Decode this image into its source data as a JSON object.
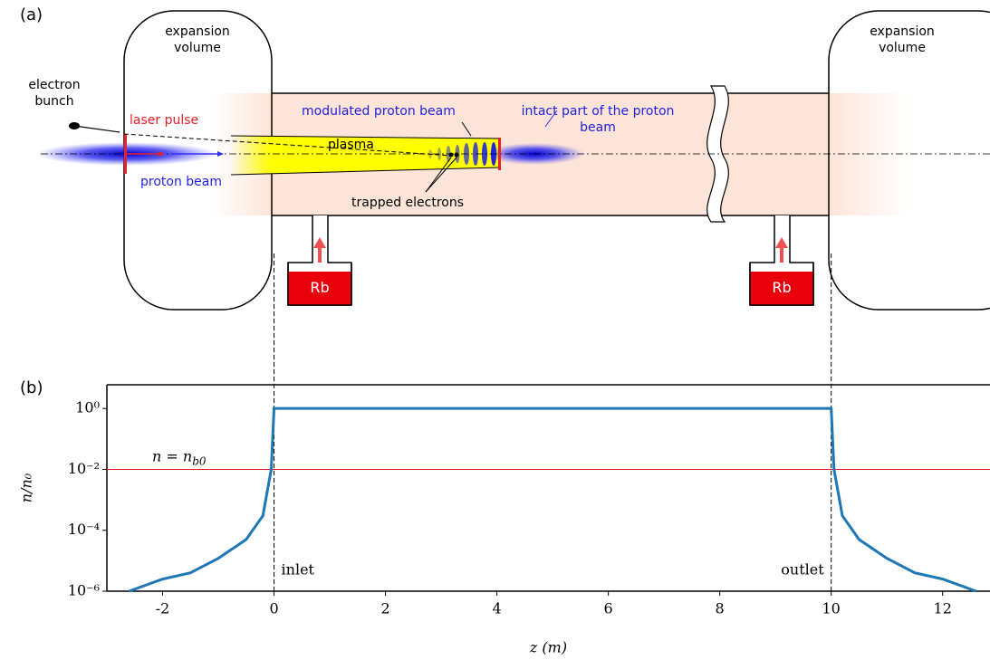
{
  "diagram": {
    "label": "(a)",
    "left_volume": "expansion volume",
    "right_volume": "expansion volume",
    "electron_bunch": "electron bunch",
    "laser_pulse": "laser pulse",
    "proton_beam": "proton beam",
    "modulated_beam": "modulated proton beam",
    "plasma": "plasma",
    "trapped_electrons": "trapped electrons",
    "intact_beam": "intact part of the proton beam",
    "rb_left": "Rb",
    "rb_right": "Rb"
  },
  "chart_data": {
    "type": "line",
    "title": "(b)",
    "x": [
      -2.6,
      -2,
      -1.5,
      -1,
      -0.5,
      -0.2,
      -0.05,
      0,
      10,
      10.05,
      10.2,
      10.5,
      11,
      11.5,
      12,
      12.6
    ],
    "series": [
      {
        "color": "#1f77b4",
        "values": [
          1e-06,
          2.5e-06,
          4e-06,
          1.2e-05,
          5e-05,
          0.0003,
          0.01,
          1,
          1,
          0.01,
          0.0003,
          5e-05,
          1.2e-05,
          4e-06,
          2.5e-06,
          1e-06
        ]
      }
    ],
    "xlim": [
      -3,
      12.85
    ],
    "ylim": [
      1e-06,
      6
    ],
    "yscale": "log",
    "xticks": [
      -2,
      0,
      2,
      4,
      6,
      8,
      10,
      12
    ],
    "yticks": [
      {
        "value": 1,
        "label": "10⁰"
      },
      {
        "value": 0.01,
        "label": "10⁻²"
      },
      {
        "value": 0.0001,
        "label": "10⁻⁴"
      },
      {
        "value": 1e-06,
        "label": "10⁻⁶"
      }
    ],
    "xlabel": "z (m)",
    "ylabel": "n/n₀",
    "hline": {
      "value": 0.01,
      "color": "#e41a1c",
      "text": "n = n",
      "sub": "b0"
    },
    "vlines": [
      0,
      10
    ],
    "vline_labels": [
      "inlet",
      "outlet"
    ]
  }
}
